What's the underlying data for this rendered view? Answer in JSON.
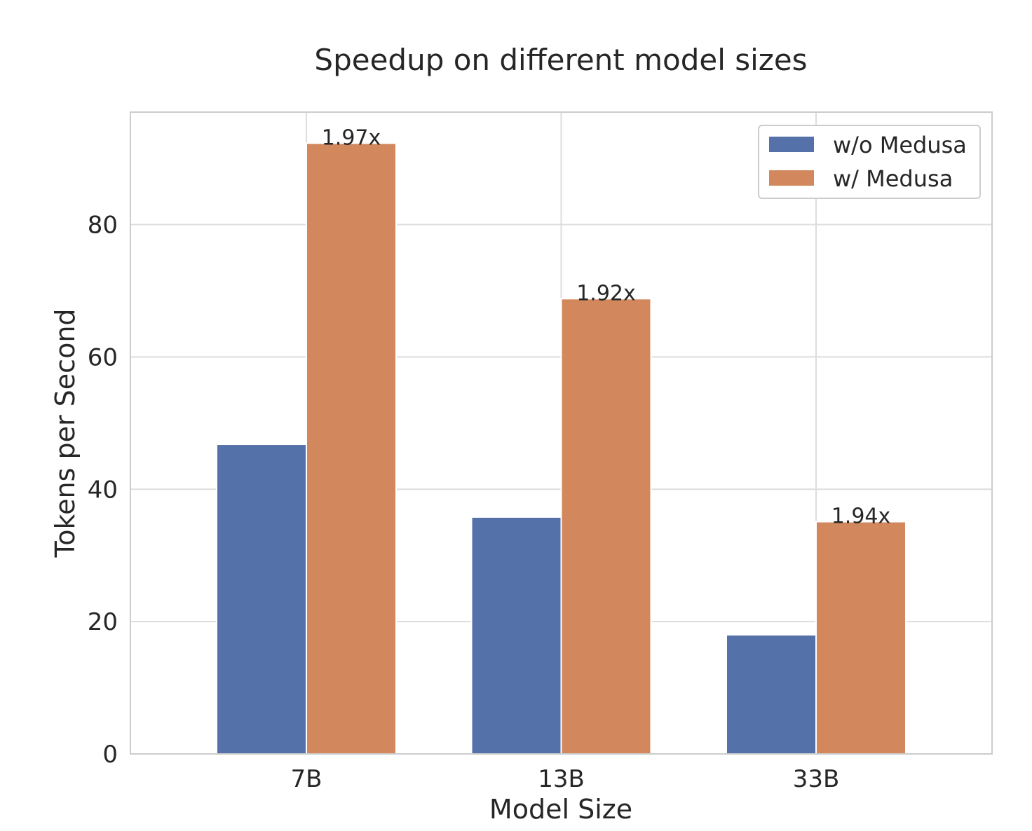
{
  "chart_data": {
    "type": "bar",
    "title": "Speedup on different model sizes",
    "xlabel": "Model Size",
    "ylabel": "Tokens per Second",
    "categories": [
      "7B",
      "13B",
      "33B"
    ],
    "series": [
      {
        "name": "w/o Medusa",
        "values": [
          46.8,
          35.8,
          18.0
        ],
        "color": "#5571aa"
      },
      {
        "name": "w/ Medusa",
        "values": [
          92.3,
          68.8,
          35.1
        ],
        "color": "#d2875c"
      }
    ],
    "data_labels": [
      "1.97x",
      "1.92x",
      "1.94x"
    ],
    "ylim": [
      0,
      97
    ],
    "yticks": [
      0,
      20,
      40,
      60,
      80
    ],
    "grid": true,
    "legend": "top-right"
  }
}
